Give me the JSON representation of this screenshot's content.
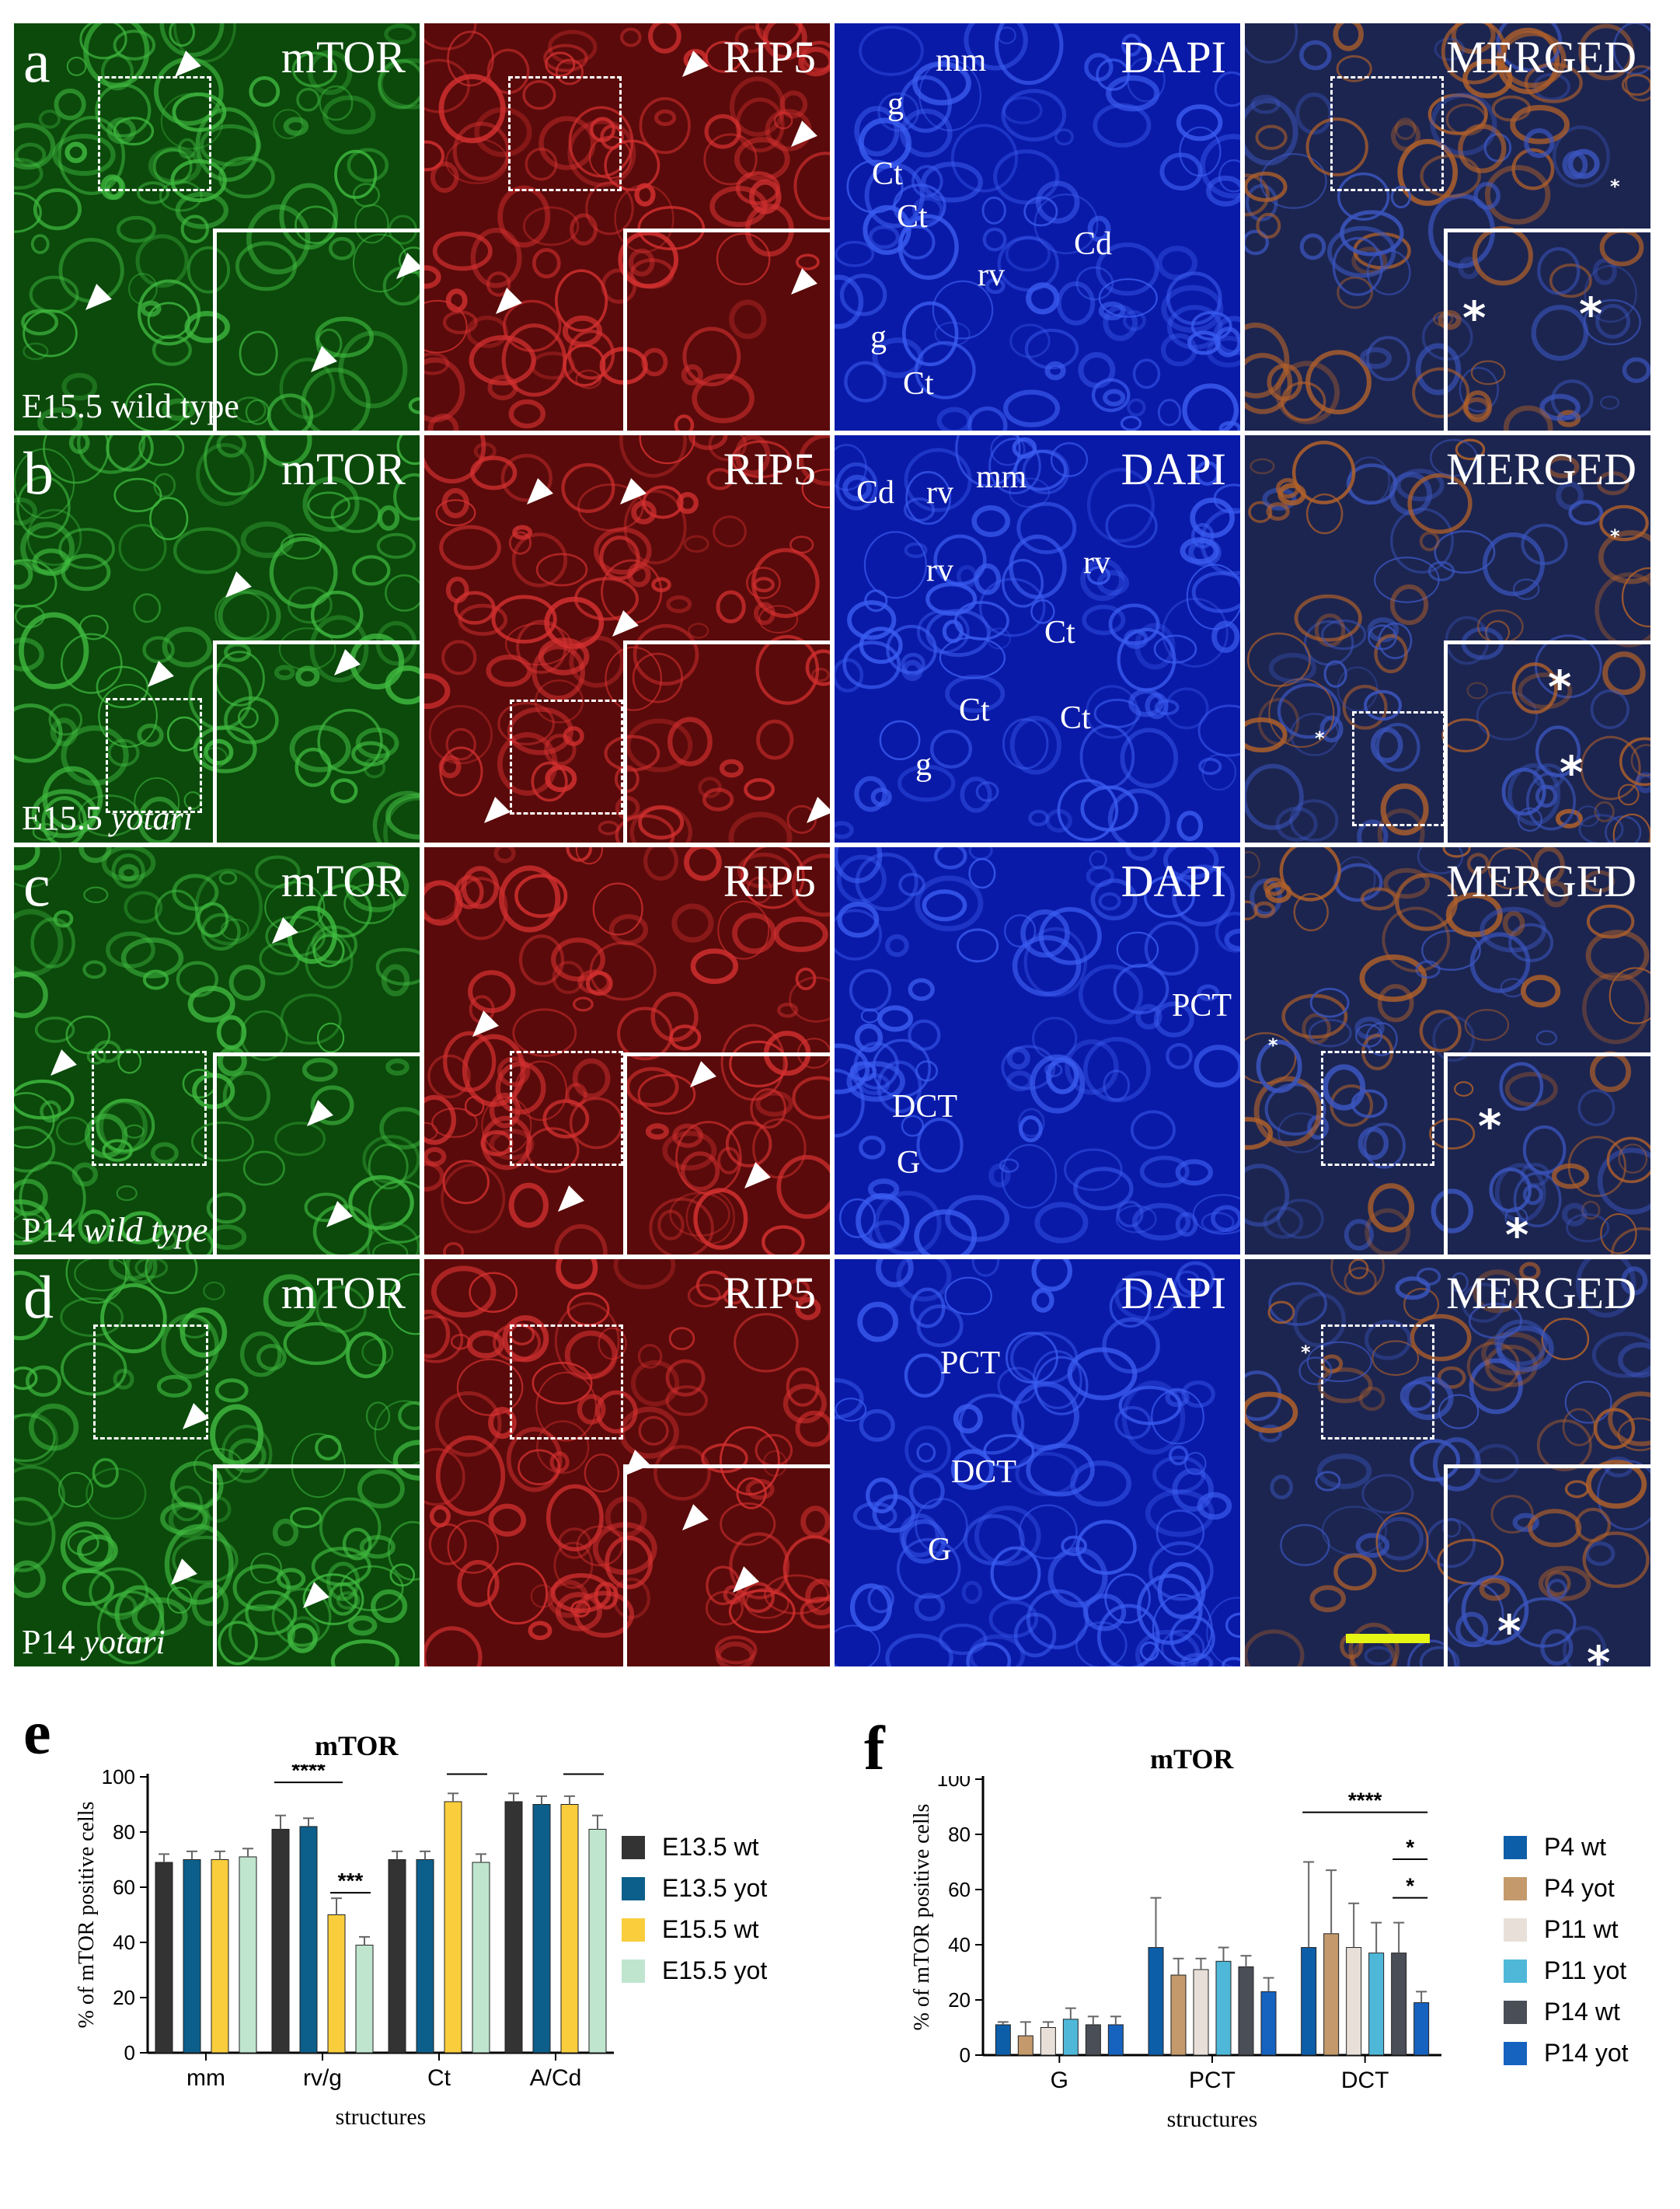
{
  "grid": {
    "rows": [
      {
        "letter": "a",
        "condition_prefix": "E15.5 wild type",
        "condition_italic": "",
        "labels": [
          "g",
          "Ct",
          "Ct",
          "rv",
          "Cd",
          "g",
          "Ct",
          "mm"
        ]
      },
      {
        "letter": "b",
        "condition_prefix": "E15.5 ",
        "condition_italic": "yotari",
        "labels": [
          "Cd",
          "rv",
          "mm",
          "rv",
          "rv",
          "Ct",
          "Ct",
          "Ct",
          "g"
        ]
      },
      {
        "letter": "c",
        "condition_prefix": "P14 ",
        "condition_italic": "wild type",
        "labels": [
          "PCT",
          "DCT",
          "G"
        ]
      },
      {
        "letter": "d",
        "condition_prefix": "P14 ",
        "condition_italic": "yotari",
        "labels": [
          "PCT",
          "DCT",
          "G"
        ]
      }
    ],
    "channels": [
      "mTOR",
      "RIP5",
      "DAPI",
      "MERGED"
    ],
    "colors": {
      "mTOR": "#1f8f1f",
      "RIP5": "#b81a1a",
      "DAPI": "#1a34c8",
      "MERGED": "#3a4a8a",
      "scalebar": "#e6f514"
    }
  },
  "chart_e": {
    "panel_letter": "e",
    "chart_data": {
      "type": "bar",
      "title": "mTOR",
      "xlabel": "structures",
      "ylabel": "% of mTOR positive cells",
      "ylim": [
        0,
        100
      ],
      "yticks": [
        "0",
        "20",
        "40",
        "60",
        "80",
        "100"
      ],
      "categories": [
        "mm",
        "rv/g",
        "Ct",
        "A/Cd"
      ],
      "series": [
        {
          "name": "E13.5 wt",
          "color": "#333333",
          "values": [
            69,
            81,
            70,
            91
          ],
          "err": [
            3,
            5,
            3,
            3
          ]
        },
        {
          "name": "E13.5 yot",
          "color": "#0b5f8a",
          "values": [
            70,
            82,
            70,
            90
          ],
          "err": [
            3,
            3,
            3,
            3
          ]
        },
        {
          "name": "E15.5 wt",
          "color": "#f9cd3c",
          "values": [
            70,
            50,
            91,
            90
          ],
          "err": [
            3,
            6,
            3,
            3
          ]
        },
        {
          "name": "E15.5 yot",
          "color": "#bfe5cf",
          "values": [
            71,
            39,
            69,
            81
          ],
          "err": [
            3,
            3,
            3,
            5
          ]
        }
      ],
      "significance": [
        "****",
        "****",
        "***",
        "****",
        "****",
        "**",
        "**"
      ]
    }
  },
  "chart_f": {
    "panel_letter": "f",
    "chart_data": {
      "type": "bar",
      "title": "mTOR",
      "xlabel": "structures",
      "ylabel": "% of mTOR positive cells",
      "ylim": [
        0,
        100
      ],
      "yticks": [
        "0",
        "20",
        "40",
        "60",
        "80",
        "100"
      ],
      "categories": [
        "G",
        "PCT",
        "DCT"
      ],
      "series": [
        {
          "name": "P4 wt",
          "color": "#0d5ea8",
          "values": [
            11,
            39,
            39
          ],
          "err": [
            1,
            18,
            31
          ]
        },
        {
          "name": "P4 yot",
          "color": "#c49a6c",
          "values": [
            7,
            29,
            44
          ],
          "err": [
            5,
            6,
            23
          ]
        },
        {
          "name": "P11 wt",
          "color": "#e8e0d8",
          "values": [
            10,
            31,
            39
          ],
          "err": [
            2,
            4,
            16
          ]
        },
        {
          "name": "P11 yot",
          "color": "#4fb8d9",
          "values": [
            13,
            34,
            37
          ],
          "err": [
            4,
            5,
            11
          ]
        },
        {
          "name": "P14 wt",
          "color": "#4a4e57",
          "values": [
            11,
            32,
            37
          ],
          "err": [
            3,
            4,
            11
          ]
        },
        {
          "name": "P14 yot",
          "color": "#1662bf",
          "values": [
            11,
            23,
            19
          ],
          "err": [
            3,
            5,
            4
          ]
        }
      ],
      "significance": [
        "****",
        "*",
        "*"
      ]
    }
  }
}
